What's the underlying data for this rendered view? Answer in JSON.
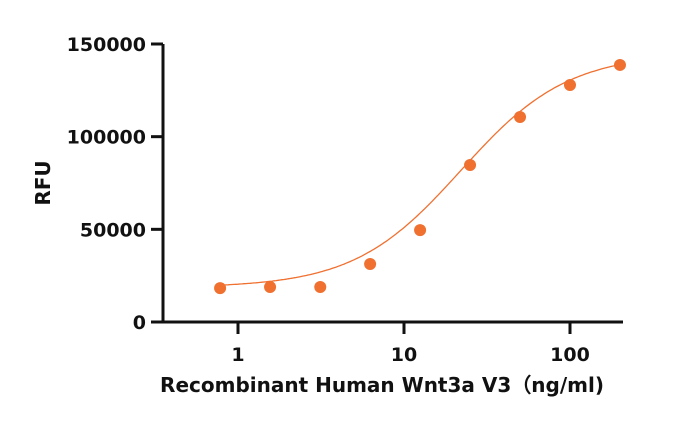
{
  "chart_data": {
    "type": "scatter",
    "title": "",
    "xlabel": "Recombinant Human Wnt3a V3（ng/ml)",
    "ylabel": "RFU",
    "xscale": "log",
    "xlim": [
      0.4,
      200
    ],
    "ylim": [
      0,
      150000
    ],
    "x_ticks": [
      1,
      10,
      100
    ],
    "x_tick_labels": [
      "1",
      "10",
      "100"
    ],
    "y_ticks": [
      0,
      50000,
      100000,
      150000
    ],
    "y_tick_labels": [
      "0",
      "50000",
      "100000",
      "150000"
    ],
    "grid": false,
    "legend": null,
    "series": [
      {
        "name": "Wnt3a V3",
        "color": "#f07030",
        "marker": "circle",
        "fit": "4PL sigmoid curve",
        "x": [
          0.78,
          1.56,
          3.13,
          6.25,
          12.5,
          25,
          50,
          100,
          200
        ],
        "y": [
          18300,
          18900,
          18900,
          31300,
          49600,
          84700,
          110600,
          127900,
          138700
        ]
      }
    ]
  }
}
